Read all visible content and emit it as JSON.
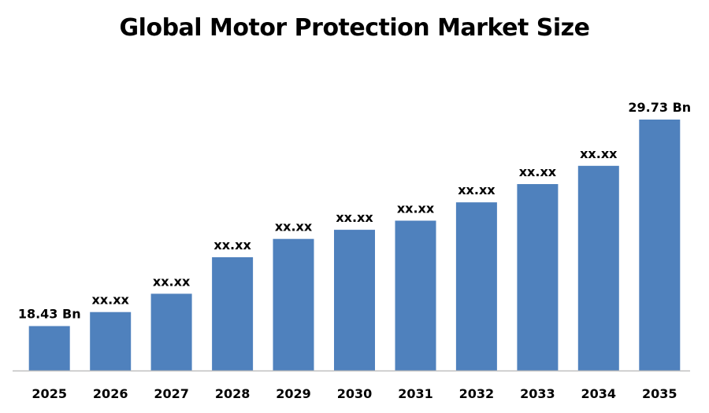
{
  "title": "Global Motor Protection Market Size",
  "chart_data": {
    "type": "bar",
    "title": "Global Motor Protection Market Size",
    "xlabel": "",
    "ylabel": "",
    "categories": [
      "2025",
      "2026",
      "2027",
      "2028",
      "2029",
      "2030",
      "2031",
      "2032",
      "2033",
      "2034",
      "2035"
    ],
    "values": [
      18.43,
      19.2,
      20.2,
      22.2,
      23.2,
      23.7,
      24.2,
      25.2,
      26.2,
      27.2,
      29.73
    ],
    "data_labels": [
      "18.43 Bn",
      "xx.xx",
      "xx.xx",
      "xx.xx",
      "xx.xx",
      "xx.xx",
      "xx.xx",
      "xx.xx",
      "xx.xx",
      "xx.xx",
      "29.73 Bn"
    ],
    "ylim": [
      16,
      30.5
    ],
    "grid": false,
    "legend": "none",
    "bar_color": "#4F81BD",
    "axis_color": "#BFBFBF",
    "label_color": "#000000"
  }
}
